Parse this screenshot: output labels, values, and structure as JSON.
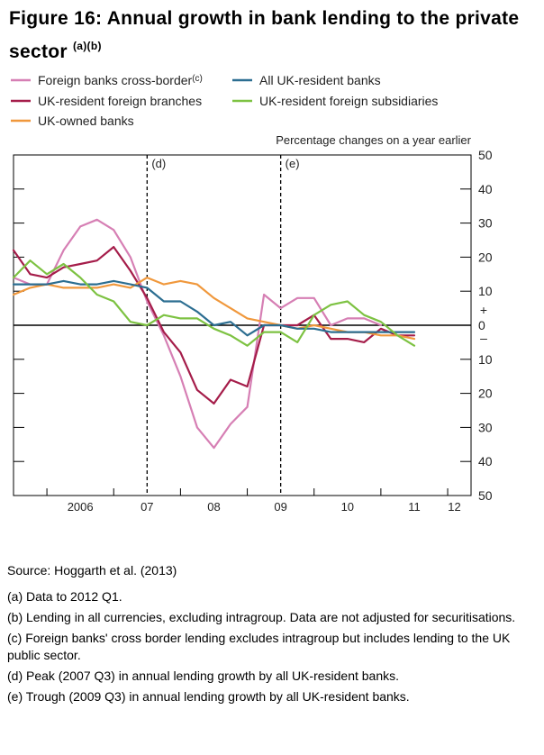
{
  "title": "Figure 16: Annual growth in bank lending to the private sector",
  "title_sup": "(a)(b)",
  "chart_data": {
    "type": "line",
    "right_axis_label": "Percentage changes on a year earlier",
    "x_tick_labels": [
      {
        "label": "2006",
        "x": 2006.5
      },
      {
        "label": "07",
        "x": 2007.5
      },
      {
        "label": "08",
        "x": 2008.5
      },
      {
        "label": "09",
        "x": 2009.5
      },
      {
        "label": "10",
        "x": 2010.5
      },
      {
        "label": "11",
        "x": 2011.5
      },
      {
        "label": "12",
        "x": 2012.1
      }
    ],
    "xlim": [
      2005.5,
      2012.35
    ],
    "y_ticks": [
      {
        "value": 50,
        "label": "50"
      },
      {
        "value": 40,
        "label": "40"
      },
      {
        "value": 30,
        "label": "30"
      },
      {
        "value": 20,
        "label": "20"
      },
      {
        "value": 10,
        "label": "10"
      },
      {
        "value": 0,
        "label": "0"
      },
      {
        "value": -10,
        "label": "10"
      },
      {
        "value": -20,
        "label": "20"
      },
      {
        "value": -30,
        "label": "30"
      },
      {
        "value": -40,
        "label": "40"
      },
      {
        "value": -50,
        "label": "50"
      }
    ],
    "ylim": [
      -50,
      50
    ],
    "plus_sign": "+",
    "minus_sign": "–",
    "annotations": [
      {
        "label": "(d)",
        "x": 2007.5
      },
      {
        "label": "(e)",
        "x": 2009.5
      }
    ],
    "x": [
      2005.5,
      2005.75,
      2006.0,
      2006.25,
      2006.5,
      2006.75,
      2007.0,
      2007.25,
      2007.5,
      2007.75,
      2008.0,
      2008.25,
      2008.5,
      2008.75,
      2009.0,
      2009.25,
      2009.5,
      2009.75,
      2010.0,
      2010.25,
      2010.5,
      2010.75,
      2011.0,
      2011.25,
      2011.5,
      2011.75,
      2012.0
    ],
    "series": [
      {
        "name": "Foreign banks cross-border",
        "name_sup": "(c)",
        "color": "#d67fb4",
        "values": [
          14,
          12,
          12,
          22,
          29,
          31,
          28,
          20,
          7,
          -3,
          -15,
          -30,
          -36,
          -29,
          -24,
          9,
          5,
          8,
          8,
          0,
          2,
          2,
          0,
          null,
          null,
          null,
          null
        ]
      },
      {
        "name": "UK-resident foreign branches",
        "color": "#a51d4a",
        "values": [
          22,
          15,
          14,
          17,
          18,
          19,
          23,
          16,
          8,
          -2,
          -8,
          -19,
          -23,
          -16,
          -18,
          0,
          0,
          0,
          3,
          -4,
          -4,
          -5,
          -1,
          -3,
          -3,
          null,
          null
        ]
      },
      {
        "name": "UK-owned banks",
        "color": "#f0983c",
        "values": [
          9,
          11,
          12,
          11,
          11,
          11,
          12,
          11,
          14,
          12,
          13,
          12,
          8,
          5,
          2,
          1,
          0,
          -1,
          0,
          -1,
          -2,
          -2,
          -3,
          -3,
          -4,
          null,
          null
        ]
      },
      {
        "name": "All UK-resident banks",
        "color": "#2c6e91",
        "values": [
          12,
          12,
          12,
          13,
          12,
          12,
          13,
          12,
          11,
          7,
          7,
          4,
          0,
          1,
          -3,
          0,
          0,
          -1,
          -1,
          -2,
          -2,
          -2,
          -2,
          -2,
          -2,
          null,
          null
        ]
      },
      {
        "name": "UK-resident foreign subsidiaries",
        "color": "#7dc242",
        "values": [
          14,
          19,
          15,
          18,
          14,
          9,
          7,
          1,
          0,
          3,
          2,
          2,
          -1,
          -3,
          -6,
          -2,
          -2,
          -5,
          3,
          6,
          7,
          3,
          1,
          -3,
          -6,
          null,
          null
        ]
      }
    ],
    "legend_order": [
      0,
      3,
      1,
      4,
      2
    ],
    "legend_position": "top"
  },
  "notes": {
    "source": "Source: Hoggarth et al. (2013)",
    "footnotes": [
      "(a) Data to 2012 Q1.",
      "(b) Lending in all currencies, excluding intragroup. Data are not adjusted for securitisations.",
      "(c) Foreign banks' cross border lending excludes intragroup but includes lending to the UK public sector.",
      "(d) Peak (2007 Q3) in annual lending growth by all UK-resident banks.",
      "(e) Trough (2009 Q3) in annual lending growth by all UK-resident banks."
    ]
  }
}
